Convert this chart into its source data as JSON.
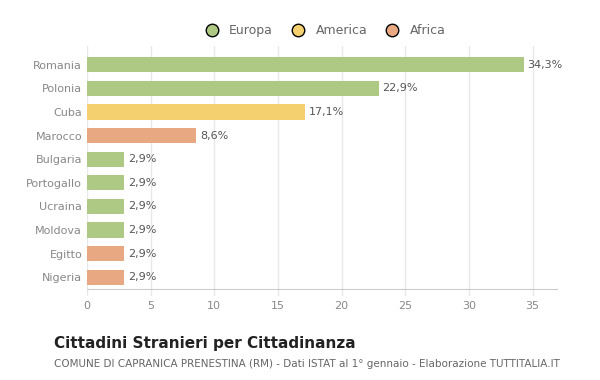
{
  "categories": [
    "Romania",
    "Polonia",
    "Cuba",
    "Marocco",
    "Bulgaria",
    "Portogallo",
    "Ucraina",
    "Moldova",
    "Egitto",
    "Nigeria"
  ],
  "values": [
    34.3,
    22.9,
    17.1,
    8.6,
    2.9,
    2.9,
    2.9,
    2.9,
    2.9,
    2.9
  ],
  "labels": [
    "34,3%",
    "22,9%",
    "17,1%",
    "8,6%",
    "2,9%",
    "2,9%",
    "2,9%",
    "2,9%",
    "2,9%",
    "2,9%"
  ],
  "colors": [
    "#adc984",
    "#adc984",
    "#f5d06e",
    "#e8a882",
    "#adc984",
    "#adc984",
    "#adc984",
    "#adc984",
    "#e8a882",
    "#e8a882"
  ],
  "legend": [
    {
      "label": "Europa",
      "color": "#adc984"
    },
    {
      "label": "America",
      "color": "#f5d06e"
    },
    {
      "label": "Africa",
      "color": "#e8a882"
    }
  ],
  "title": "Cittadini Stranieri per Cittadinanza",
  "subtitle": "COMUNE DI CAPRANICA PRENESTINA (RM) - Dati ISTAT al 1° gennaio - Elaborazione TUTTITALIA.IT",
  "xlim": [
    0,
    37
  ],
  "xticks": [
    0,
    5,
    10,
    15,
    20,
    25,
    30,
    35
  ],
  "background_color": "#ffffff",
  "bar_height": 0.65,
  "title_fontsize": 11,
  "subtitle_fontsize": 7.5,
  "label_fontsize": 8,
  "tick_fontsize": 8,
  "ytick_fontsize": 8
}
